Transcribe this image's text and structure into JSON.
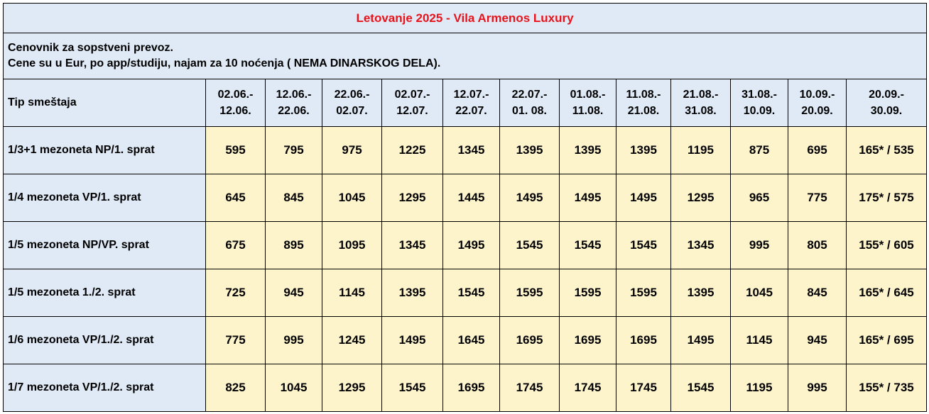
{
  "title": "Letovanje 2025 - Vila Armenos Luxury",
  "notes": [
    "Cenovnik za sopstveni prevoz.",
    "Cene su u Eur, po app/studiju, najam za 10 noćenja ( NEMA DINARSKOG DELA)."
  ],
  "header_label": "Tip smeštaja",
  "periods": [
    {
      "from": "02.06.-",
      "to": "12.06."
    },
    {
      "from": "12.06.-",
      "to": "22.06."
    },
    {
      "from": "22.06.-",
      "to": "02.07."
    },
    {
      "from": "02.07.-",
      "to": "12.07."
    },
    {
      "from": "12.07.-",
      "to": "22.07."
    },
    {
      "from": "22.07.-",
      "to": "01. 08."
    },
    {
      "from": "01.08.-",
      "to": "11.08."
    },
    {
      "from": "11.08.-",
      "to": "21.08."
    },
    {
      "from": "21.08.-",
      "to": "31.08."
    },
    {
      "from": "31.08.-",
      "to": "10.09."
    },
    {
      "from": "10.09.-",
      "to": "20.09."
    },
    {
      "from": "20.09.-",
      "to": "30.09."
    }
  ],
  "rows": [
    {
      "label": "1/3+1 mezoneta NP/1. sprat",
      "prices": [
        "595",
        "795",
        "975",
        "1225",
        "1345",
        "1395",
        "1395",
        "1395",
        "1195",
        "875",
        "695",
        "165* / 535"
      ]
    },
    {
      "label": "1/4 mezoneta VP/1. sprat",
      "prices": [
        "645",
        "845",
        "1045",
        "1295",
        "1445",
        "1495",
        "1495",
        "1495",
        "1295",
        "965",
        "775",
        "175* / 575"
      ]
    },
    {
      "label": "1/5 mezoneta NP/VP. sprat",
      "prices": [
        "675",
        "895",
        "1095",
        "1345",
        "1495",
        "1545",
        "1545",
        "1545",
        "1345",
        "995",
        "805",
        "155* / 605"
      ]
    },
    {
      "label": "1/5 mezoneta 1./2. sprat",
      "prices": [
        "725",
        "945",
        "1145",
        "1395",
        "1545",
        "1595",
        "1595",
        "1595",
        "1395",
        "1045",
        "845",
        "165* / 645"
      ]
    },
    {
      "label": "1/6 mezoneta VP/1./2. sprat",
      "prices": [
        "775",
        "995",
        "1245",
        "1495",
        "1645",
        "1695",
        "1695",
        "1695",
        "1495",
        "1145",
        "945",
        "165* / 695"
      ]
    },
    {
      "label": "1/7 mezoneta VP/1./2. sprat",
      "prices": [
        "825",
        "1045",
        "1295",
        "1545",
        "1695",
        "1745",
        "1745",
        "1745",
        "1545",
        "1195",
        "995",
        "155* / 735"
      ]
    }
  ],
  "colors": {
    "title_text": "#e8141c",
    "header_bg": "#dfeaf6",
    "price_bg": "#fef4cc",
    "border": "#000000"
  }
}
